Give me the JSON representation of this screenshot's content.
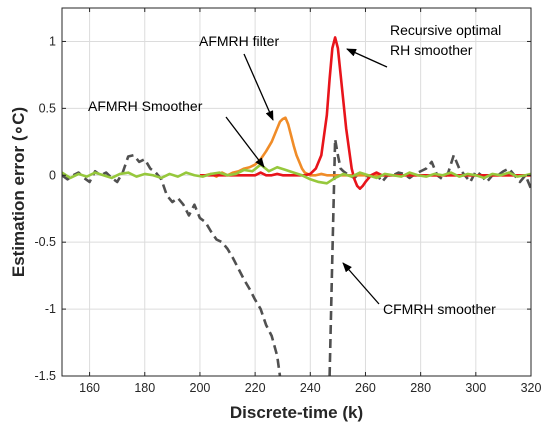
{
  "chart_data": {
    "type": "line",
    "xlabel": "Discrete-time (k)",
    "ylabel": "Estimation error (∘C)",
    "xlim": [
      150,
      320
    ],
    "ylim": [
      -1.5,
      1.25
    ],
    "grid": true,
    "xticks": [
      160,
      180,
      200,
      220,
      240,
      260,
      280,
      300,
      320
    ],
    "yticks": [
      -1.5,
      -1,
      -0.5,
      0,
      0.5,
      1
    ],
    "ytick_labels": [
      "-1.5",
      "-1",
      "-0.5",
      "0",
      "0.5",
      "1"
    ],
    "colors": {
      "cfmrh": "#505050",
      "recursive": "#e8141b",
      "afmrh_filter": "#f08c28",
      "afmrh_smoother": "#96c83c"
    },
    "series": [
      {
        "key": "cfmrh",
        "style": "dashed",
        "x": [
          150,
          152,
          154,
          156,
          158,
          160,
          162,
          164,
          166,
          168,
          170,
          172,
          174,
          176,
          178,
          180,
          182,
          184,
          186,
          188,
          190,
          192,
          194,
          196,
          198,
          200,
          202,
          204,
          206,
          208,
          210,
          212,
          214,
          216,
          218,
          220,
          222,
          224,
          226,
          228,
          229,
          232,
          236,
          240,
          244,
          246,
          247,
          248,
          249,
          250,
          251,
          252,
          254,
          256,
          258,
          260,
          262,
          264,
          266,
          268,
          270,
          272,
          274,
          276,
          278,
          280,
          282,
          284,
          286,
          288,
          290,
          292,
          294,
          296,
          298,
          300,
          302,
          304,
          306,
          308,
          310,
          312,
          314,
          316,
          318,
          320
        ],
        "y": [
          0.0,
          -0.03,
          0.0,
          0.02,
          -0.02,
          -0.05,
          0.03,
          0.0,
          0.02,
          -0.02,
          -0.05,
          0.02,
          0.14,
          0.15,
          0.1,
          0.12,
          0.05,
          0.02,
          -0.03,
          -0.15,
          -0.2,
          -0.17,
          -0.22,
          -0.3,
          -0.22,
          -0.32,
          -0.35,
          -0.42,
          -0.48,
          -0.5,
          -0.55,
          -0.62,
          -0.7,
          -0.78,
          -0.85,
          -0.93,
          -1.0,
          -1.12,
          -1.2,
          -1.35,
          -1.5,
          null,
          null,
          null,
          null,
          null,
          -1.5,
          -0.6,
          0.27,
          0.15,
          0.05,
          0.03,
          0.0,
          -0.02,
          0.02,
          0.0,
          -0.02,
          0.01,
          -0.05,
          0.0,
          0.0,
          0.02,
          0.01,
          -0.02,
          0.01,
          0.03,
          0.05,
          0.1,
          0.0,
          -0.03,
          0.02,
          0.15,
          0.05,
          0.0,
          -0.05,
          0.03,
          0.0,
          -0.05,
          0.0,
          0.0,
          0.03,
          0.05,
          0.0,
          -0.05,
          0.0,
          -0.1
        ]
      },
      {
        "key": "recursive",
        "style": "solid",
        "x": [
          200,
          205,
          210,
          215,
          220,
          222,
          224,
          226,
          228,
          230,
          232,
          234,
          236,
          238,
          240,
          242,
          244,
          246,
          247,
          248,
          249,
          250,
          251,
          252,
          253,
          254,
          255,
          256,
          257,
          258,
          259,
          260,
          262,
          264,
          266,
          270,
          280,
          300,
          320
        ],
        "y": [
          0.0,
          0.0,
          0.0,
          0.0,
          0.0,
          0.02,
          0.0,
          0.0,
          0.01,
          0.0,
          0.0,
          0.0,
          0.0,
          0.0,
          0.01,
          0.05,
          0.15,
          0.45,
          0.72,
          0.95,
          1.03,
          0.95,
          0.75,
          0.55,
          0.35,
          0.2,
          0.05,
          -0.03,
          -0.08,
          -0.1,
          -0.08,
          -0.05,
          0.0,
          0.02,
          0.0,
          0.0,
          0.0,
          0.0,
          0.0
        ]
      },
      {
        "key": "afmrh_filter",
        "style": "solid",
        "x": [
          200,
          202,
          204,
          206,
          208,
          210,
          212,
          214,
          216,
          218,
          220,
          222,
          224,
          226,
          228,
          229,
          230,
          231,
          232,
          233,
          234,
          235,
          236,
          237,
          238,
          239,
          240,
          242,
          244,
          246,
          248,
          250,
          260,
          280,
          300,
          320
        ],
        "y": [
          0.0,
          0.0,
          0.01,
          -0.01,
          0.02,
          0.0,
          0.02,
          0.03,
          0.05,
          0.06,
          0.08,
          0.12,
          0.18,
          0.25,
          0.35,
          0.4,
          0.42,
          0.43,
          0.38,
          0.3,
          0.22,
          0.15,
          0.1,
          0.05,
          0.02,
          0.01,
          0.0,
          0.0,
          0.01,
          0.0,
          0.0,
          0.0,
          0.0,
          0.0,
          0.0,
          0.0
        ]
      },
      {
        "key": "afmrh_smoother",
        "style": "solid",
        "x": [
          150,
          153,
          156,
          159,
          162,
          165,
          168,
          171,
          174,
          177,
          180,
          183,
          186,
          189,
          192,
          195,
          198,
          201,
          204,
          207,
          210,
          213,
          216,
          219,
          222,
          225,
          228,
          231,
          234,
          237,
          240,
          243,
          246,
          249,
          252,
          255,
          258,
          261,
          264,
          267,
          270,
          273,
          276,
          279,
          282,
          285,
          288,
          291,
          294,
          297,
          300,
          303,
          306,
          309,
          312,
          315,
          318,
          320
        ],
        "y": [
          0.02,
          -0.02,
          0.01,
          -0.01,
          0.02,
          0.0,
          -0.02,
          0.01,
          0.02,
          -0.01,
          0.01,
          0.0,
          -0.02,
          0.01,
          -0.01,
          0.02,
          0.0,
          -0.01,
          0.01,
          0.02,
          0.0,
          0.01,
          0.04,
          0.03,
          0.08,
          0.03,
          0.06,
          0.04,
          0.02,
          0.0,
          -0.03,
          -0.05,
          -0.06,
          -0.02,
          0.01,
          -0.01,
          0.02,
          0.0,
          -0.02,
          0.01,
          0.0,
          -0.01,
          0.02,
          0.0,
          -0.01,
          0.01,
          0.0,
          0.02,
          -0.01,
          0.01,
          0.0,
          -0.02,
          0.01,
          0.0,
          0.02,
          -0.01,
          0.0,
          0.01
        ]
      }
    ],
    "annotations": [
      {
        "key": "afmrh_filter_label",
        "lines": [
          "AFMRH filter"
        ]
      },
      {
        "key": "afmrh_smoother_label",
        "lines": [
          "AFMRH Smoother"
        ]
      },
      {
        "key": "recursive_label",
        "lines": [
          "Recursive optimal",
          "RH  smoother"
        ]
      },
      {
        "key": "cfmrh_label",
        "lines": [
          "CFMRH smoother"
        ]
      }
    ]
  }
}
